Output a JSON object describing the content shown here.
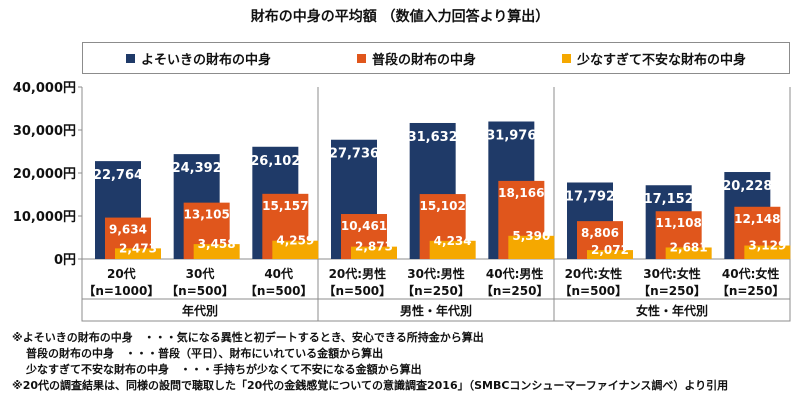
{
  "chart_data": {
    "type": "bar",
    "title": "財布の中身の平均額 （数値入力回答より算出）",
    "ylim": [
      0,
      40000
    ],
    "yticks": [
      "0円",
      "10,000円",
      "20,000円",
      "30,000円",
      "40,000円"
    ],
    "ytick_values": [
      0,
      10000,
      20000,
      30000,
      40000
    ],
    "categories": [
      {
        "line1": "20代",
        "line2": "【n=1000】"
      },
      {
        "line1": "30代",
        "line2": "【n=500】"
      },
      {
        "line1": "40代",
        "line2": "【n=500】"
      },
      {
        "line1": "20代:男性",
        "line2": "【n=500】"
      },
      {
        "line1": "30代:男性",
        "line2": "【n=250】"
      },
      {
        "line1": "40代:男性",
        "line2": "【n=250】"
      },
      {
        "line1": "20代:女性",
        "line2": "【n=500】"
      },
      {
        "line1": "30代:女性",
        "line2": "【n=250】"
      },
      {
        "line1": "40代:女性",
        "line2": "【n=250】"
      }
    ],
    "groups": [
      {
        "label": "年代別",
        "count": 3
      },
      {
        "label": "男性・年代別",
        "count": 3
      },
      {
        "label": "女性・年代別",
        "count": 3
      }
    ],
    "series": [
      {
        "name": "よそいきの財布の中身",
        "color": "#1f3a68",
        "values": [
          22764,
          24392,
          26102,
          27736,
          31632,
          31976,
          17792,
          17152,
          20228
        ],
        "labels": [
          "22,764",
          "24,392",
          "26,102",
          "27,736",
          "31,632",
          "31,976",
          "17,792",
          "17,152",
          "20,228"
        ]
      },
      {
        "name": "普段の財布の中身",
        "color": "#e0561c",
        "values": [
          9634,
          13105,
          15157,
          10461,
          15102,
          18166,
          8806,
          11108,
          12148
        ],
        "labels": [
          "9,634",
          "13,105",
          "15,157",
          "10,461",
          "15,102",
          "18,166",
          "8,806",
          "11,108",
          "12,148"
        ]
      },
      {
        "name": "少なすぎて不安な財布の中身",
        "color": "#f5a800",
        "values": [
          2473,
          3458,
          4259,
          2873,
          4234,
          5390,
          2072,
          2681,
          3129
        ],
        "labels": [
          "2,473",
          "3,458",
          "4,259",
          "2,873",
          "4,234",
          "5,390",
          "2,072",
          "2,681",
          "3,129"
        ]
      }
    ],
    "legend_position": "top",
    "grid": false
  },
  "notes": [
    "※よそいきの財布の中身　・・・気になる異性と初デートするとき、安心できる所持金から算出",
    "普段の財布の中身　・・・普段（平日）、財布にいれている金額から算出",
    "少なすぎて不安な財布の中身　・・・手持ちが少なくて不安になる金額から算出",
    "※20代の調査結果は、同様の設問で聴取した「20代の金銭感覚についての意識調査2016」（SMBCコンシューマーファイナンス調べ）より引用"
  ]
}
